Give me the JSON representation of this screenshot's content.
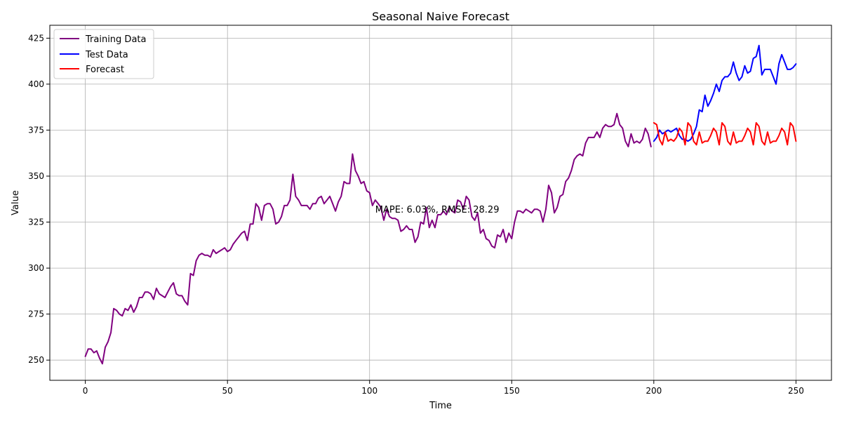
{
  "chart_data": {
    "type": "line",
    "title": "Seasonal Naive Forecast",
    "xlabel": "Time",
    "ylabel": "Value",
    "xlim": [
      -12.5,
      262.5
    ],
    "ylim": [
      239,
      432
    ],
    "xticks": [
      0,
      50,
      100,
      150,
      200,
      250
    ],
    "yticks": [
      250,
      275,
      300,
      325,
      350,
      375,
      400,
      425
    ],
    "grid": true,
    "legend_position": "top-left",
    "annotation": {
      "text": "MAPE: 6.03%, RMSE: 28.29",
      "x": 102,
      "y": 332
    },
    "series": [
      {
        "name": "Training Data",
        "color": "#800080",
        "x_start": 0,
        "values": [
          252,
          256,
          256,
          254,
          255,
          251,
          248,
          257,
          260,
          265,
          278,
          277,
          275,
          274,
          278,
          277,
          280,
          276,
          279,
          284,
          284,
          287,
          287,
          286,
          283,
          289,
          286,
          285,
          284,
          287,
          290,
          292,
          286,
          285,
          285,
          282,
          280,
          297,
          296,
          304,
          307,
          308,
          307,
          307,
          306,
          310,
          308,
          309,
          310,
          311,
          309,
          310,
          313,
          315,
          317,
          319,
          320,
          315,
          324,
          324,
          335,
          333,
          326,
          334,
          335,
          335,
          332,
          324,
          325,
          328,
          334,
          334,
          337,
          351,
          339,
          337,
          334,
          334,
          334,
          332,
          335,
          335,
          338,
          339,
          335,
          337,
          339,
          335,
          331,
          336,
          339,
          347,
          346,
          346,
          362,
          353,
          350,
          346,
          347,
          342,
          341,
          334,
          337,
          335,
          333,
          326,
          332,
          328,
          327,
          327,
          326,
          320,
          321,
          323,
          321,
          321,
          314,
          317,
          325,
          324,
          333,
          322,
          326,
          322,
          329,
          329,
          331,
          329,
          333,
          331,
          330,
          337,
          336,
          332,
          339,
          337,
          328,
          326,
          330,
          319,
          321,
          316,
          315,
          312,
          311,
          318,
          317,
          321,
          314,
          319,
          316,
          325,
          331,
          331,
          330,
          332,
          331,
          330,
          332,
          332,
          331,
          325,
          332,
          345,
          341,
          330,
          333,
          339,
          340,
          347,
          349,
          353,
          359,
          361,
          362,
          361,
          368,
          371,
          371,
          371,
          374,
          371,
          376,
          378,
          377,
          377,
          378,
          384,
          378,
          376,
          369,
          366,
          373,
          368,
          369,
          368,
          370,
          376,
          373,
          366
        ]
      },
      {
        "name": "Test Data",
        "color": "#0000ff",
        "x_start": 200,
        "values": [
          369,
          371,
          375,
          373,
          374,
          375,
          374,
          375,
          376,
          372,
          370,
          370,
          369,
          370,
          373,
          377,
          386,
          385,
          394,
          388,
          391,
          395,
          400,
          396,
          402,
          404,
          404,
          406,
          412,
          406,
          402,
          404,
          410,
          406,
          407,
          414,
          415,
          421,
          405,
          408,
          408,
          408,
          404,
          400,
          411,
          416,
          412,
          408,
          408,
          409,
          411
        ]
      },
      {
        "name": "Forecast",
        "color": "#ff0000",
        "x_start": 200,
        "values": [
          379,
          378,
          370,
          367,
          374,
          369,
          370,
          369,
          371,
          376,
          374,
          367,
          379,
          377,
          369,
          367,
          374,
          368,
          369,
          369,
          372,
          376,
          374,
          367,
          379,
          377,
          369,
          367,
          374,
          368,
          369,
          369,
          372,
          376,
          374,
          367,
          379,
          377,
          369,
          367,
          374,
          368,
          369,
          369,
          372,
          376,
          374,
          367,
          379,
          377,
          369
        ]
      }
    ]
  }
}
